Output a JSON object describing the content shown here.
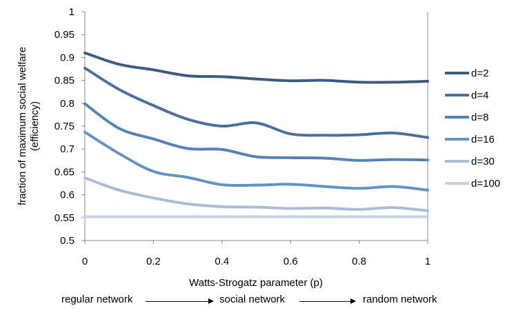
{
  "chart_data": {
    "type": "line",
    "title": "",
    "xlabel": "Watts-Strogatz parameter (p)",
    "ylabel_line1": "fraction of maximum social welfare",
    "ylabel_line2": "(efficiency)",
    "xlim": [
      0,
      1
    ],
    "ylim": [
      0.5,
      1
    ],
    "x_ticks": [
      0,
      0.2,
      0.4,
      0.6,
      0.8,
      1
    ],
    "x_tick_labels": [
      "0",
      "0.2",
      "0.4",
      "0.6",
      "0.8",
      "1"
    ],
    "y_ticks": [
      0.5,
      0.55,
      0.6,
      0.65,
      0.7,
      0.75,
      0.8,
      0.85,
      0.9,
      0.95,
      1
    ],
    "y_tick_labels": [
      "0.5",
      "0.55",
      "0.6",
      "0.65",
      "0.7",
      "0.75",
      "0.8",
      "0.85",
      "0.9",
      "0.95",
      "1"
    ],
    "x": [
      0,
      0.1,
      0.2,
      0.3,
      0.4,
      0.5,
      0.6,
      0.7,
      0.8,
      0.9,
      1.0
    ],
    "legend_position": "right",
    "series": [
      {
        "name": "d=2",
        "color": "#3b5b80",
        "values": [
          0.91,
          0.885,
          0.873,
          0.86,
          0.858,
          0.853,
          0.849,
          0.85,
          0.846,
          0.846,
          0.848
        ]
      },
      {
        "name": "d=4",
        "color": "#4a6f9c",
        "values": [
          0.877,
          0.83,
          0.795,
          0.765,
          0.75,
          0.757,
          0.733,
          0.73,
          0.731,
          0.735,
          0.725
        ]
      },
      {
        "name": "d=8",
        "color": "#5582b5",
        "values": [
          0.799,
          0.745,
          0.722,
          0.701,
          0.699,
          0.683,
          0.681,
          0.68,
          0.675,
          0.677,
          0.676
        ]
      },
      {
        "name": "d=16",
        "color": "#6392c4",
        "values": [
          0.737,
          0.69,
          0.651,
          0.638,
          0.622,
          0.621,
          0.623,
          0.618,
          0.614,
          0.618,
          0.61
        ]
      },
      {
        "name": "d=30",
        "color": "#a9bcd8",
        "values": [
          0.637,
          0.61,
          0.593,
          0.58,
          0.574,
          0.573,
          0.57,
          0.571,
          0.568,
          0.572,
          0.565
        ]
      },
      {
        "name": "d=100",
        "color": "#c4d2e6",
        "values": [
          0.552,
          0.552,
          0.552,
          0.552,
          0.552,
          0.552,
          0.552,
          0.552,
          0.552,
          0.552,
          0.552
        ]
      }
    ]
  },
  "bottom_caption": {
    "left": "regular network",
    "middle": "social network",
    "right": "random network"
  }
}
